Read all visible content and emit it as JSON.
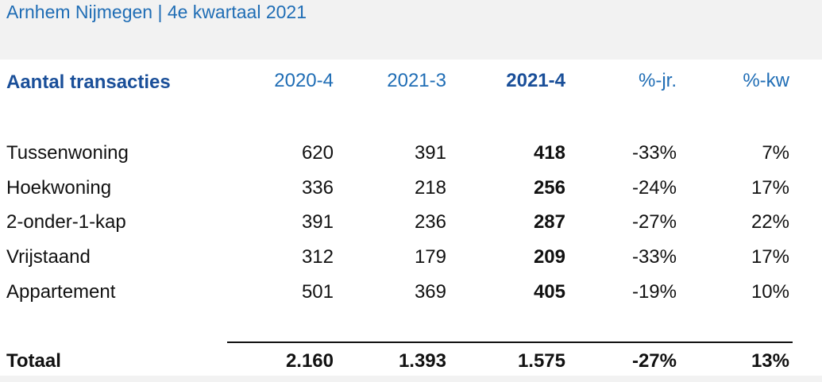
{
  "title": "Arnhem Nijmegen | 4e kwartaal 2021",
  "header": {
    "label": "Aantal transacties",
    "columns": [
      "2020-4",
      "2021-3",
      "2021-4",
      "%-jr.",
      "%-kw"
    ]
  },
  "rows": [
    {
      "label": "Tussenwoning",
      "values": [
        "620",
        "391",
        "418",
        "-33%",
        "7%"
      ]
    },
    {
      "label": "Hoekwoning",
      "values": [
        "336",
        "218",
        "256",
        "-24%",
        "17%"
      ]
    },
    {
      "label": "2-onder-1-kap",
      "values": [
        "391",
        "236",
        "287",
        "-27%",
        "22%"
      ]
    },
    {
      "label": "Vrijstaand",
      "values": [
        "312",
        "179",
        "209",
        "-33%",
        "17%"
      ]
    },
    {
      "label": "Appartement",
      "values": [
        "501",
        "369",
        "405",
        "-19%",
        "10%"
      ]
    }
  ],
  "total": {
    "label": "Totaal",
    "values": [
      "2.160",
      "1.393",
      "1.575",
      "-27%",
      "13%"
    ]
  },
  "colors": {
    "accent": "#1f6db5",
    "header_bold": "#1a4f99"
  }
}
